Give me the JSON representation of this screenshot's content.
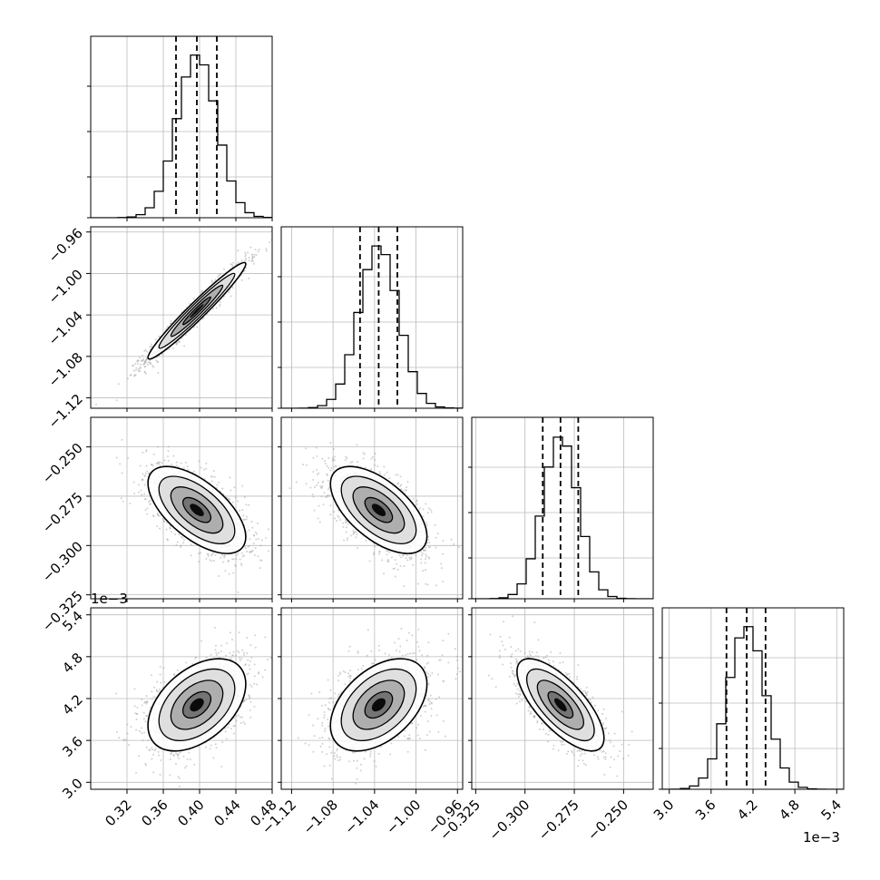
{
  "chart_data": {
    "type": "corner",
    "parameters": [
      {
        "range": [
          0.28,
          0.48
        ],
        "ticks": [
          0.32,
          0.36,
          0.4,
          0.44,
          0.48
        ],
        "tick_labels": [
          "0.32",
          "0.36",
          "0.40",
          "0.44",
          "0.48"
        ],
        "quantiles": [
          0.374,
          0.397,
          0.419
        ],
        "median": 0.397,
        "sd": 0.022
      },
      {
        "range": [
          -1.13,
          -0.955
        ],
        "ticks": [
          -1.12,
          -1.08,
          -1.04,
          -1.0,
          -0.96
        ],
        "tick_labels": [
          "−1.12",
          "−1.08",
          "−1.04",
          "−1.00",
          "−0.96"
        ],
        "quantiles": [
          -1.054,
          -1.036,
          -1.018
        ],
        "median": -1.036,
        "sd": 0.019
      },
      {
        "range": [
          -0.327,
          -0.235
        ],
        "ticks": [
          -0.325,
          -0.3,
          -0.275,
          -0.25
        ],
        "tick_labels": [
          "−0.325",
          "−0.300",
          "−0.275",
          "−0.250"
        ],
        "quantiles": [
          -0.291,
          -0.282,
          -0.273
        ],
        "median": -0.282,
        "sd": 0.009
      },
      {
        "range": [
          2.9,
          5.5
        ],
        "ticks": [
          3.0,
          3.6,
          4.2,
          4.8,
          5.4
        ],
        "tick_labels": [
          "3.0",
          "3.6",
          "4.2",
          "4.8",
          "5.4"
        ],
        "quantiles": [
          3.82,
          4.11,
          4.38
        ],
        "median": 4.11,
        "sd": 0.27
      },
      {
        "exponent_label": "1e−3"
      }
    ],
    "correlations": [
      [
        1,
        0.97,
        -0.62,
        0.45
      ],
      [
        0.97,
        1,
        -0.6,
        0.45
      ],
      [
        -0.62,
        -0.6,
        1,
        -0.72
      ],
      [
        0.45,
        0.45,
        -0.72,
        1
      ]
    ],
    "x_exponent_label": "1e−3",
    "y_exponent_label": "1e−3",
    "grid": true,
    "histogram_bins": 20
  }
}
